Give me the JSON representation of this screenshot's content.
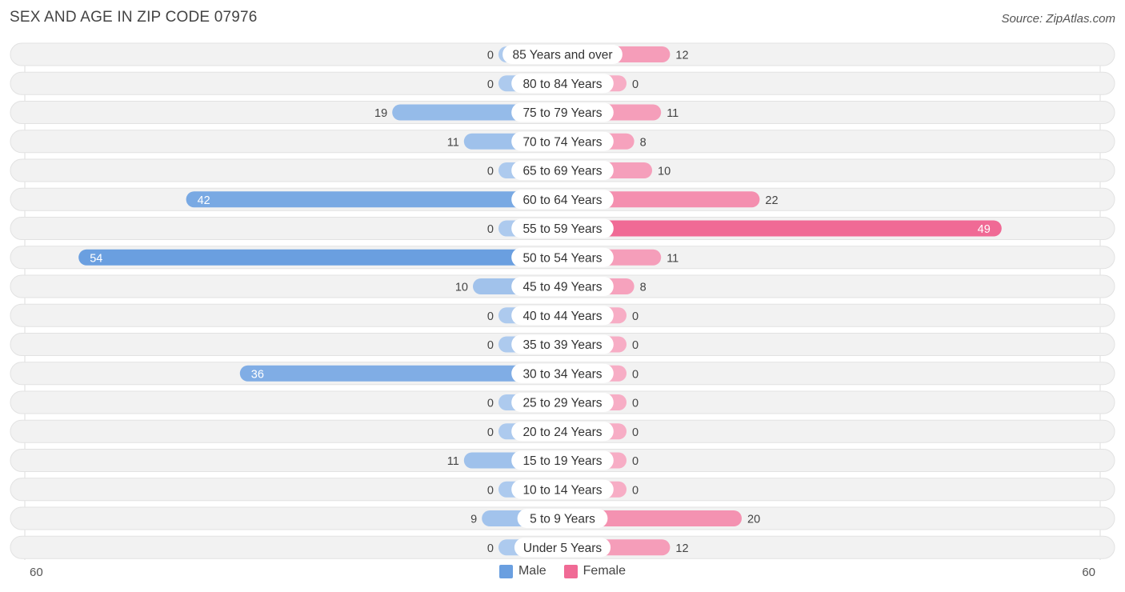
{
  "header": {
    "title": "SEX AND AGE IN ZIP CODE 07976",
    "source": "Source: ZipAtlas.com"
  },
  "chart_data": {
    "type": "bar",
    "orientation": "horizontal-diverging",
    "title": "SEX AND AGE IN ZIP CODE 07976",
    "categories": [
      "85 Years and over",
      "80 to 84 Years",
      "75 to 79 Years",
      "70 to 74 Years",
      "65 to 69 Years",
      "60 to 64 Years",
      "55 to 59 Years",
      "50 to 54 Years",
      "45 to 49 Years",
      "40 to 44 Years",
      "35 to 39 Years",
      "30 to 34 Years",
      "25 to 29 Years",
      "20 to 24 Years",
      "15 to 19 Years",
      "10 to 14 Years",
      "5 to 9 Years",
      "Under 5 Years"
    ],
    "series": [
      {
        "name": "Male",
        "color": "#6a9fe0",
        "values": [
          0,
          0,
          19,
          11,
          0,
          42,
          0,
          54,
          10,
          0,
          0,
          36,
          0,
          0,
          11,
          0,
          9,
          0
        ]
      },
      {
        "name": "Female",
        "color": "#f06a95",
        "values": [
          12,
          0,
          11,
          8,
          10,
          22,
          49,
          11,
          8,
          0,
          0,
          0,
          0,
          0,
          0,
          0,
          20,
          12
        ]
      }
    ],
    "axis": {
      "left_label": "60",
      "right_label": "60",
      "max": 60
    },
    "legend_position": "bottom-center"
  }
}
